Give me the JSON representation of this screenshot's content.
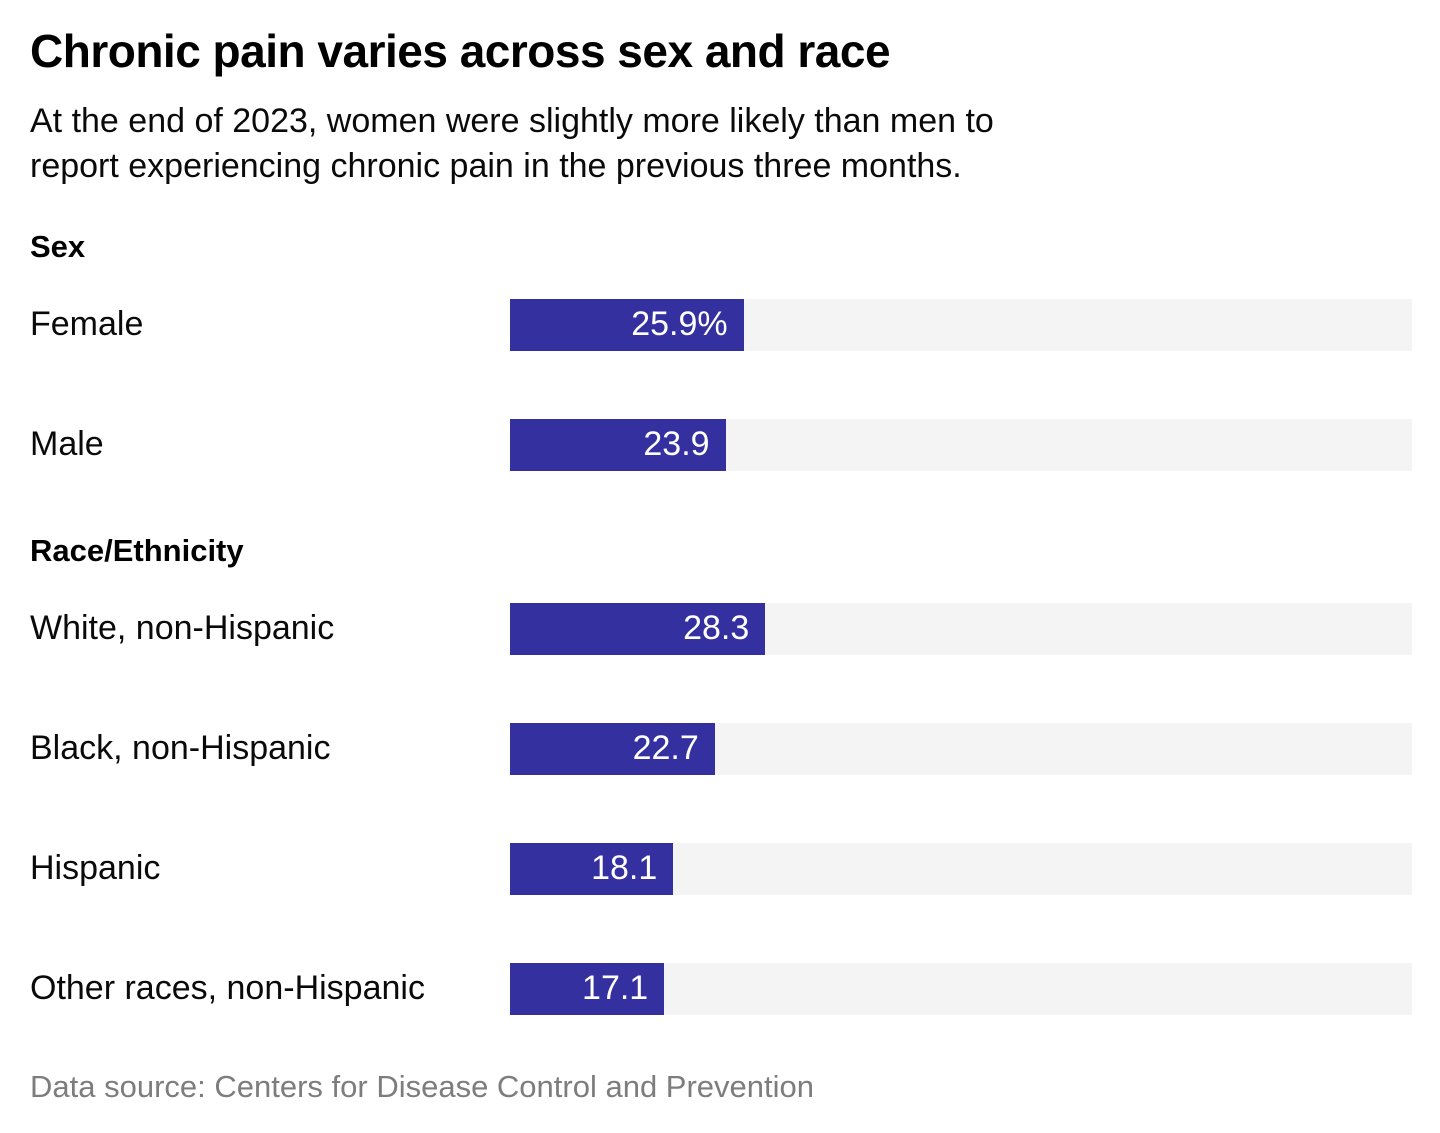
{
  "header": {
    "title": "Chronic pain varies across sex and race",
    "subtitle_lines": [
      "At the end of 2023, women were slightly more likely than men to",
      "report experiencing chronic pain in the previous three months."
    ]
  },
  "footer": {
    "source": "Data source: Centers for Disease Control and Prevention"
  },
  "chart_data": {
    "type": "bar",
    "orientation": "horizontal",
    "title": "Chronic pain varies across sex and race",
    "subtitle": "At the end of 2023, women were slightly more likely than men to report experiencing chronic pain in the previous three months.",
    "xlabel": "",
    "ylabel": "",
    "xlim": [
      0,
      100
    ],
    "value_unit": "percent",
    "grid": false,
    "legend": false,
    "groups": [
      {
        "label": "Sex",
        "rows": [
          {
            "label": "Female",
            "value": 25.9,
            "display": "25.9%"
          },
          {
            "label": "Male",
            "value": 23.9,
            "display": "23.9"
          }
        ]
      },
      {
        "label": "Race/Ethnicity",
        "rows": [
          {
            "label": "White, non-Hispanic",
            "value": 28.3,
            "display": "28.3"
          },
          {
            "label": "Black, non-Hispanic",
            "value": 22.7,
            "display": "22.7"
          },
          {
            "label": "Hispanic",
            "value": 18.1,
            "display": "18.1"
          },
          {
            "label": "Other races, non-Hispanic",
            "value": 17.1,
            "display": "17.1"
          }
        ]
      }
    ],
    "colors": {
      "bar": "#34309f",
      "track": "#f4f4f4",
      "value_text": "#ffffff",
      "label_text": "#0a0a0a",
      "source_text": "#7d7d7d"
    }
  }
}
